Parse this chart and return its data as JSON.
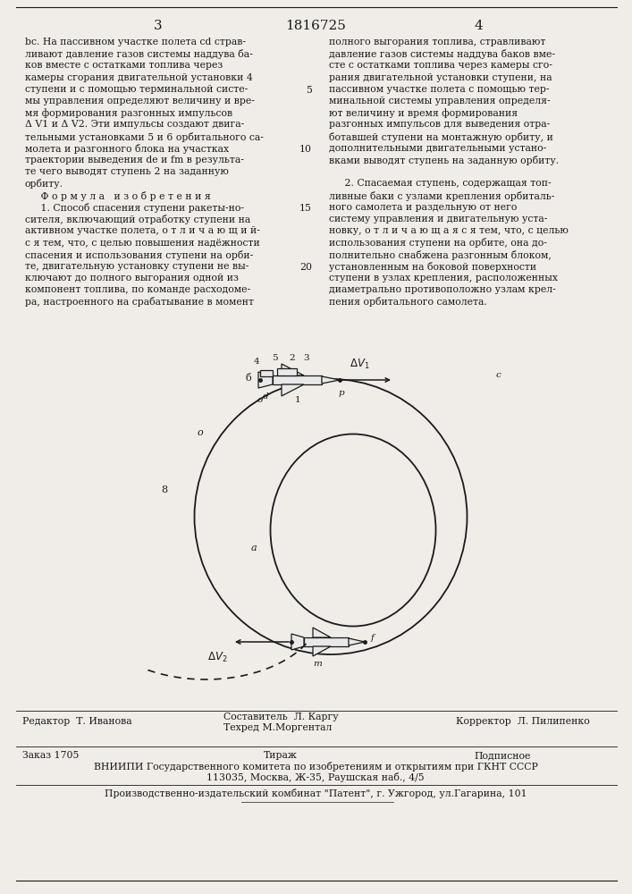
{
  "page_number_left": "3",
  "patent_number": "1816725",
  "page_number_right": "4",
  "bg_color": "#f0ede8",
  "text_color": "#1a1a1a",
  "left_col_lines": [
    "bc. На пассивном участке полета cd страв-",
    "ливают давление газов системы наддува ба-",
    "ков вместе с остатками топлива через",
    "камеры сгорания двигательной установки 4",
    "ступени и с помощью терминальной систе-",
    "мы управления определяют величину и вре-",
    "мя формирования разгонных импульсов",
    "Δ V1 и Δ V2. Эти импульсы создают двига-",
    "тельными установками 5 и 6 орбитального са-",
    "молета и разгонного блока на участках",
    "траектории выведения de и fm в результа-",
    "те чего выводят ступень 2 на заданную",
    "орбиту.",
    "     Ф о р м у л а   и з о б р е т е н и я",
    "     1. Способ спасения ступени ракеты-но-",
    "сителя, включающий отработку ступени на",
    "активном участке полета, о т л и ч а ю щ и й-",
    "с я тем, что, с целью повышения надёжности",
    "спасения и использования ступени на орби-",
    "те, двигательную установку ступени не вы-",
    "ключают до полного выгорания одной из",
    "компонент топлива, по команде расходоме-",
    "ра, настроенного на срабатывание в момент"
  ],
  "right_col_lines": [
    "полного выгорания топлива, стравливают",
    "давление газов системы наддува баков вме-",
    "сте с остатками топлива через камеры сго-",
    "рания двигательной установки ступени, на",
    "пассивном участке полета с помощью тер-",
    "минальной системы управления определя-",
    "ют величину и время формирования",
    "разгонных импульсов для выведения отра-",
    "ботавшей ступени на монтажную орбиту, и",
    "дополнительными двигательными устано-",
    "вками выводят ступень на заданную орбиту.",
    "",
    "     2. Спасаемая ступень, содержащая топ-",
    "ливные баки с узлами крепления орбиталь-",
    "ного самолета и раздельную от него",
    "систему управления и двигательную уста-",
    "новку, о т л и ч а ю щ а я с я тем, что, с целью",
    "использования ступени на орбите, она до-",
    "полнительно снабжена разгонным блоком,",
    "установленным на боковой поверхности",
    "ступени в узлах крепления, расположенных",
    "диаметрально противоположно узлам крел-",
    "пения орбитального самолета."
  ],
  "line_numbers": [
    [
      5,
      4
    ],
    [
      10,
      9
    ],
    [
      15,
      14
    ],
    [
      20,
      19
    ]
  ],
  "footer_editor": "Редактор  Т. Иванова",
  "footer_compiler": "Составитель  Л. Каргу",
  "footer_techred": "Техред М.Моргентал",
  "footer_corrector": "Корректор  Л. Пилипенко",
  "footer_order": "Заказ 1705",
  "footer_tirazh": "Тираж",
  "footer_podpisnoe": "Подписное",
  "footer_vnipi": "ВНИИПИ Государственного комитета по изобретениям и открытиям при ГКНТ СССР",
  "footer_address": "113035, Москва, Ж-35, Раушская наб., 4/5",
  "footer_patent": "Производственно-издательский комбинат \"Патент\", г. Ужгород, ул.Гагарина, 101"
}
